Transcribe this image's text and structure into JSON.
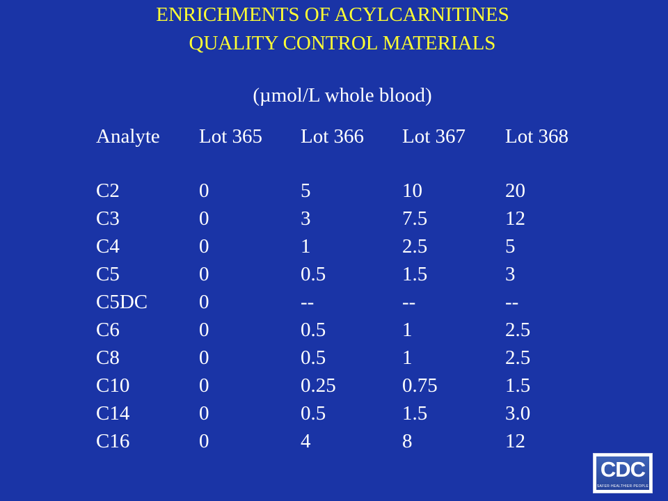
{
  "title": {
    "line1": "ENRICHMENTS OF ACYLCARNITINES",
    "line2": "QUALITY CONTROL MATERIALS"
  },
  "subtitle": "(µmol/L whole blood)",
  "table": {
    "headers": [
      "Analyte",
      "Lot 365",
      "Lot 366",
      "Lot 367",
      "Lot 368"
    ],
    "rows": [
      [
        "C2",
        "0",
        "5",
        "10",
        "20"
      ],
      [
        "C3",
        "0",
        "3",
        "7.5",
        "12"
      ],
      [
        "C4",
        "0",
        "1",
        "2.5",
        "5"
      ],
      [
        "C5",
        "0",
        "0.5",
        "1.5",
        "3"
      ],
      [
        "C5DC",
        "0",
        "--",
        "--",
        "--"
      ],
      [
        "C6",
        "0",
        "0.5",
        "1",
        "2.5"
      ],
      [
        "C8",
        "0",
        "0.5",
        "1",
        "2.5"
      ],
      [
        "C10",
        "0",
        "0.25",
        "0.75",
        "1.5"
      ],
      [
        "C14",
        "0",
        "0.5",
        "1.5",
        "3.0"
      ],
      [
        "C16",
        "0",
        "4",
        "8",
        "12"
      ]
    ]
  },
  "logo": {
    "text": "CDC",
    "tagline": "SAFER·HEALTHIER·PEOPLE"
  },
  "colors": {
    "background": "#1a34a6",
    "title": "#ffff33",
    "text": "#ffffff"
  }
}
